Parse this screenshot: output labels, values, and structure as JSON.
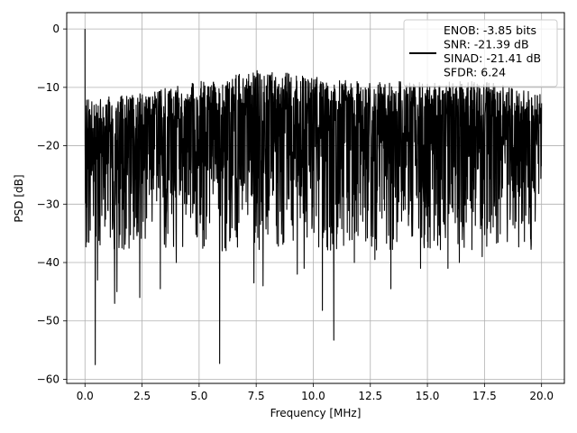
{
  "chart_data": {
    "type": "line",
    "title": "",
    "xlabel": "Frequency [MHz]",
    "ylabel": "PSD [dB]",
    "xlim": [
      -0.8,
      21.0
    ],
    "ylim": [
      -60.7,
      2.8
    ],
    "xticks": [
      0.0,
      2.5,
      5.0,
      7.5,
      10.0,
      12.5,
      15.0,
      17.5,
      20.0
    ],
    "xtick_labels": [
      "0.0",
      "2.5",
      "5.0",
      "7.5",
      "10.0",
      "12.5",
      "15.0",
      "17.5",
      "20.0"
    ],
    "yticks": [
      0,
      -10,
      -20,
      -30,
      -40,
      -50,
      -60
    ],
    "ytick_labels": [
      "0",
      "−10",
      "−20",
      "−30",
      "−40",
      "−50",
      "−60"
    ],
    "grid": true,
    "legend_position": "top-right",
    "series": [
      {
        "name": "ENOB: -3.85 bits\nSNR: -21.39 dB\nSINAD: -21.41 dB\nSFDR: 6.24",
        "color": "#000000",
        "description": "dense noisy power spectral density from 0 to 20 MHz, 0 dB peak at DC",
        "x_range": [
          0.0,
          20.0
        ],
        "dc_peak": 0.0,
        "envelope_top": [
          [
            0.2,
            -12
          ],
          [
            2.5,
            -11
          ],
          [
            5.0,
            -9
          ],
          [
            7.5,
            -7
          ],
          [
            10.0,
            -8
          ],
          [
            12.5,
            -9
          ],
          [
            15.0,
            -9
          ],
          [
            17.5,
            -9
          ],
          [
            20.0,
            -11
          ]
        ],
        "typical_floor": -30,
        "notable_dips": [
          [
            0.45,
            -57.5
          ],
          [
            0.55,
            -43
          ],
          [
            1.3,
            -47
          ],
          [
            1.4,
            -45
          ],
          [
            2.4,
            -46
          ],
          [
            3.3,
            -44.5
          ],
          [
            4.0,
            -40
          ],
          [
            5.9,
            -57.3
          ],
          [
            7.4,
            -43.5
          ],
          [
            7.8,
            -44
          ],
          [
            9.3,
            -42
          ],
          [
            9.6,
            -41
          ],
          [
            10.4,
            -48.2
          ],
          [
            10.9,
            -53.3
          ],
          [
            11.8,
            -40
          ],
          [
            12.7,
            -39.5
          ],
          [
            13.4,
            -44.5
          ],
          [
            14.7,
            -41
          ],
          [
            15.9,
            -41
          ],
          [
            16.4,
            -40
          ],
          [
            17.4,
            -39
          ]
        ]
      }
    ]
  }
}
